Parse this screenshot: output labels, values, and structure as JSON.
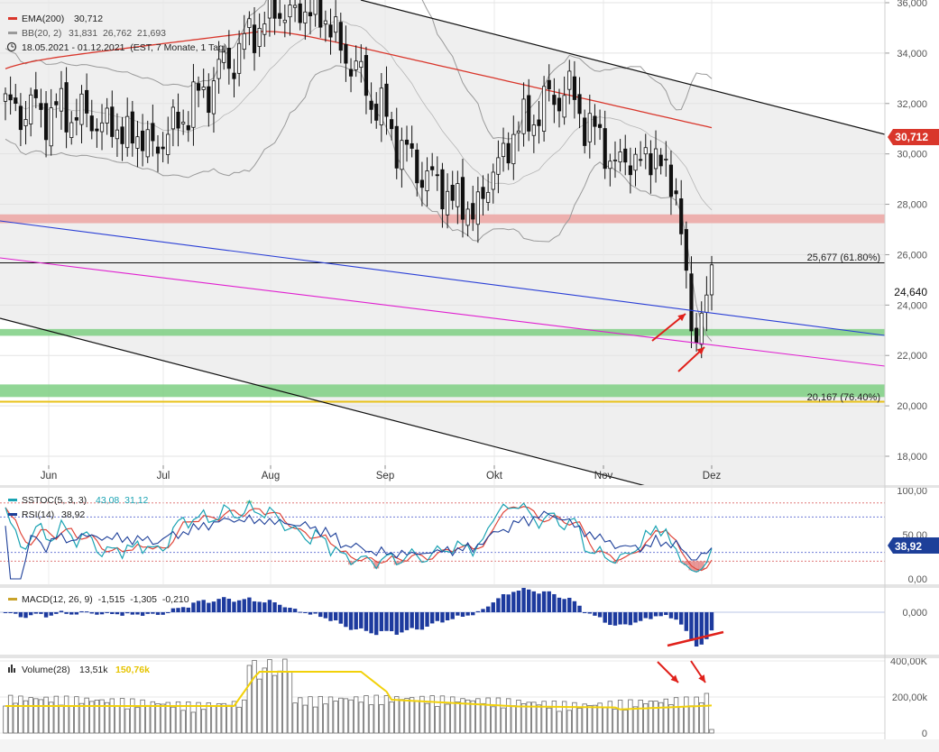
{
  "colors": {
    "ema": "#d9362b",
    "bollinger": "#9a9a9a",
    "channel": "#111111",
    "blue_trend": "#2a3fd6",
    "magenta_trend": "#e020d0",
    "support_zone": "#7ecf83",
    "resistance_zone": "#eca8a6",
    "fib_line": "#111111",
    "stoch_k": "#1aa3b3",
    "stoch_d": "#e0463a",
    "rsi": "#1d3f99",
    "macd_bar": "#1d3a9e",
    "volume_bar": "#8c8c8c",
    "volume_avg": "#f2d10a",
    "annotation_arrow": "#e0201a",
    "overbought_fill": "#7bc36a",
    "oversold_fill": "#e07575"
  },
  "chart_data": [
    {
      "type": "candlestick",
      "legend": [
        {
          "label": "EMA(200)",
          "value": "30,712",
          "color_key": "ema"
        },
        {
          "label": "BB(20, 2)",
          "value": "31,831  26,762  21,693",
          "color_key": "bollinger"
        }
      ],
      "info": "18.05.2021 - 01.12.2021  (EST, 7 Monate, 1 Tag)",
      "x_tick_labels": [
        "Jun",
        "Jul",
        "Aug",
        "Sep",
        "Okt",
        "Nov",
        "Dez"
      ],
      "y_tick_labels": [
        "36,000",
        "34,000",
        "32,000",
        "30,000",
        "28,000",
        "26,000",
        "24,000",
        "22,000",
        "20,000",
        "18,000"
      ],
      "ylim": [
        17000,
        36200
      ],
      "last_price": "24,640",
      "ema_tag": "30,712",
      "fib_levels": [
        {
          "label": "25,677 (61.80%)",
          "value": 25677
        },
        {
          "label": "20,167 (76.40%)",
          "value": 20167
        }
      ],
      "support_zones": [
        [
          22780,
          23050
        ],
        [
          20350,
          20850
        ]
      ],
      "resistance_zones": [
        [
          27250,
          27600
        ]
      ],
      "monthly_close_path": [
        {
          "month": "Jun",
          "close": 31.6
        },
        {
          "month": "Jul",
          "close": 35.8
        },
        {
          "month": "Aug",
          "close": 28.0
        },
        {
          "month": "Sep",
          "close": 30.8
        },
        {
          "month": "Okt",
          "close": 30.1
        },
        {
          "month": "Nov",
          "close": 29.0
        },
        {
          "month": "Dez",
          "close": 24.6
        }
      ],
      "pivots": [
        {
          "label": "Jun low",
          "value": 30.2
        },
        {
          "label": "Jul high",
          "value": 36.2
        },
        {
          "label": "Aug low",
          "value": 27.3
        },
        {
          "label": "Sep high",
          "value": 32.8
        },
        {
          "label": "Okt low",
          "value": 28.3
        },
        {
          "label": "Nov high",
          "value": 31.4
        },
        {
          "label": "Dez low",
          "value": 22.6
        }
      ]
    },
    {
      "type": "line",
      "legend": [
        {
          "label": "SSTOC(5, 3, 3)",
          "values": "43,08  31,12",
          "color_key": "stoch_k"
        },
        {
          "label": "RSI(14)",
          "values": "38,92",
          "color_key": "rsi"
        }
      ],
      "y_tick_labels": [
        "100,00",
        "50,00",
        "0,00"
      ],
      "last_value_tag": "38,92",
      "overbought": 80,
      "oversold": 20,
      "ylim": [
        0,
        100
      ]
    },
    {
      "type": "bar",
      "legend": "MACD(12, 26, 9)  -1,515  -1,305  -0,210",
      "y_tick_labels": [
        "0,000"
      ]
    },
    {
      "type": "bar",
      "legend_label": "Volume(28)",
      "legend_value": "13,51k",
      "legend_avg": "150,76k",
      "y_tick_labels": [
        "400,00K",
        "200,00k",
        "0"
      ]
    }
  ]
}
